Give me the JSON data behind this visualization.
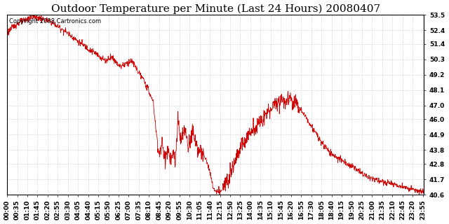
{
  "title": "Outdoor Temperature per Minute (Last 24 Hours) 20080407",
  "copyright_text": "Copyright 2008 Cartronics.com",
  "line_color": "#cc0000",
  "background_color": "#ffffff",
  "plot_bg_color": "#ffffff",
  "grid_color": "#bbbbbb",
  "yticks": [
    40.6,
    41.7,
    42.8,
    43.8,
    44.9,
    46.0,
    47.0,
    48.1,
    49.2,
    50.3,
    51.4,
    52.4,
    53.5
  ],
  "ylim": [
    40.6,
    53.5
  ],
  "xtick_interval": 35,
  "total_minutes": 1440,
  "title_fontsize": 11,
  "axis_fontsize": 6.5,
  "copyright_fontsize": 6
}
